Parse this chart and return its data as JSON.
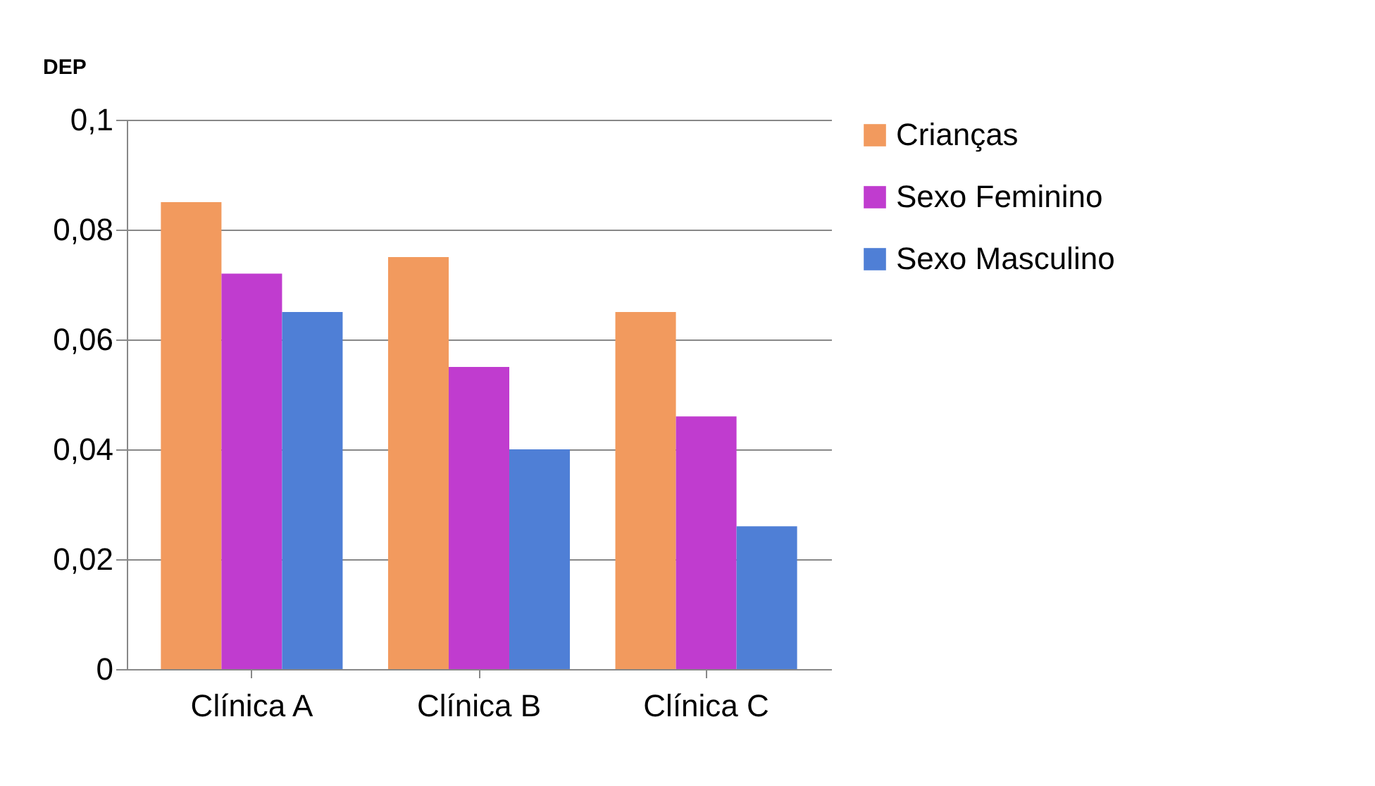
{
  "chart_data": {
    "type": "bar",
    "ylabel": "DEP",
    "categories": [
      "Clínica A",
      "Clínica B",
      "Clínica C"
    ],
    "series": [
      {
        "name": "Crianças",
        "color": "#f29a5e",
        "values": [
          0.085,
          0.075,
          0.065
        ]
      },
      {
        "name": "Sexo Feminino",
        "color": "#c03ccf",
        "values": [
          0.072,
          0.055,
          0.046
        ]
      },
      {
        "name": "Sexo Masculino",
        "color": "#4f7fd6",
        "values": [
          0.065,
          0.04,
          0.026
        ]
      }
    ],
    "ylim": [
      0,
      0.1
    ],
    "yticks": [
      {
        "value": 0,
        "label": "0"
      },
      {
        "value": 0.02,
        "label": "0,02"
      },
      {
        "value": 0.04,
        "label": "0,04"
      },
      {
        "value": 0.06,
        "label": "0,06"
      },
      {
        "value": 0.08,
        "label": "0,08"
      },
      {
        "value": 0.1,
        "label": "0,1"
      }
    ],
    "grid": "y",
    "legend": "right"
  }
}
